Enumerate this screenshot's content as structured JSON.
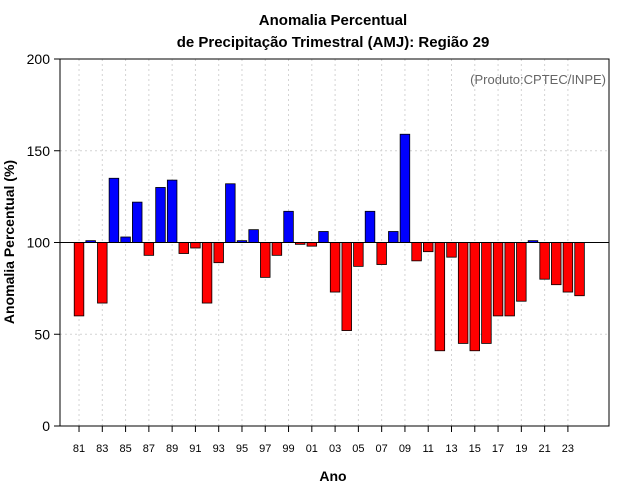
{
  "chart_data": {
    "type": "bar",
    "title": [
      "Anomalia Percentual",
      "de Precipitação Trimestral (AMJ): Região 29"
    ],
    "xlabel": "Ano",
    "ylabel": "Anomalia Percentual (%)",
    "annotation": "(Produto:CPTEC/INPE)",
    "baseline": 100,
    "ylim": [
      0,
      200
    ],
    "yticks": [
      0,
      50,
      100,
      150,
      200
    ],
    "grid": true,
    "colors": {
      "above": "#0000ff",
      "below": "#ff0000",
      "edge": "#000000",
      "grid": "#d3d3d3",
      "annotation": "#666666"
    },
    "categories": [
      "81",
      "82",
      "83",
      "84",
      "85",
      "86",
      "87",
      "88",
      "89",
      "90",
      "91",
      "92",
      "93",
      "94",
      "95",
      "96",
      "97",
      "98",
      "99",
      "00",
      "01",
      "02",
      "03",
      "04",
      "05",
      "06",
      "07",
      "08",
      "09",
      "10",
      "11",
      "12",
      "13",
      "14",
      "15",
      "16",
      "17",
      "18",
      "19",
      "20",
      "21",
      "22",
      "23",
      "24"
    ],
    "xtick_labels": [
      "81",
      "83",
      "85",
      "87",
      "89",
      "91",
      "93",
      "95",
      "97",
      "99",
      "01",
      "03",
      "05",
      "07",
      "09",
      "11",
      "13",
      "15",
      "17",
      "19",
      "21",
      "23"
    ],
    "values": [
      60,
      101,
      67,
      135,
      103,
      122,
      93,
      130,
      134,
      94,
      97,
      67,
      89,
      132,
      101,
      107,
      81,
      93,
      117,
      99,
      98,
      106,
      73,
      52,
      87,
      117,
      88,
      106,
      159,
      90,
      95,
      41,
      92,
      45,
      41,
      45,
      60,
      60,
      68,
      101,
      80,
      77,
      73,
      71
    ]
  }
}
